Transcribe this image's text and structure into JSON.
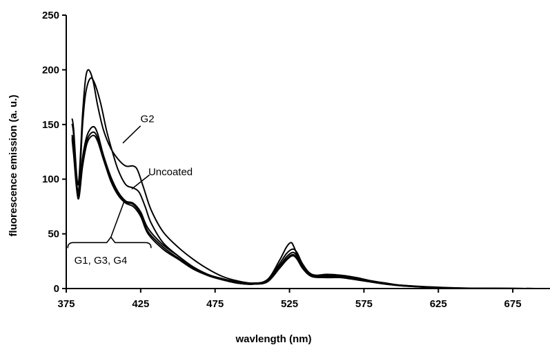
{
  "chart_data": {
    "type": "line",
    "title": "",
    "xlabel": "wavlength (nm)",
    "ylabel": "fluorescence emission (a. u.)",
    "xlim": [
      375,
      700
    ],
    "ylim": [
      0,
      250
    ],
    "xticks": [
      375,
      425,
      475,
      525,
      575,
      625,
      675
    ],
    "yticks": [
      0,
      50,
      100,
      150,
      200,
      250
    ],
    "grid": false,
    "legend": "none",
    "series": [
      {
        "x": [
          379,
          380,
          383,
          386,
          388,
          390,
          393,
          396,
          400,
          405,
          410,
          415,
          420,
          423,
          427,
          432,
          440,
          450,
          460,
          470,
          480,
          490,
          500,
          510,
          518,
          523,
          526,
          528,
          532,
          537,
          542,
          550,
          560,
          570,
          580,
          590,
          600,
          620,
          640,
          660,
          690
        ],
        "values": [
          155,
          145,
          95,
          160,
          192,
          200,
          190,
          168,
          145,
          128,
          118,
          112,
          112,
          108,
          92,
          72,
          52,
          38,
          27,
          18,
          11,
          7,
          5,
          8,
          25,
          38,
          42,
          38,
          25,
          15,
          12,
          13,
          12,
          9,
          6,
          4,
          3,
          1.5,
          0.5,
          0.2,
          0
        ]
      },
      {
        "x": [
          379,
          380,
          383,
          386,
          388,
          391,
          394,
          398,
          402,
          406,
          410,
          415,
          420,
          424,
          428,
          432,
          440,
          450,
          460,
          470,
          480,
          490,
          500,
          510,
          518,
          523,
          527,
          530,
          534,
          540,
          550,
          560,
          570,
          580,
          590,
          600,
          620,
          640,
          660,
          690
        ],
        "values": [
          150,
          140,
          88,
          150,
          178,
          192,
          188,
          170,
          145,
          125,
          108,
          95,
          92,
          88,
          75,
          60,
          42,
          30,
          20,
          13,
          8,
          5,
          4,
          7,
          22,
          32,
          36,
          33,
          22,
          13,
          12,
          12,
          10,
          7,
          5,
          3,
          1.2,
          0.4,
          0.2,
          0
        ]
      },
      {
        "x": [
          379,
          380,
          383,
          386,
          389,
          393,
          396,
          400,
          405,
          410,
          415,
          420,
          425,
          430,
          440,
          450,
          460,
          470,
          480,
          490,
          500,
          510,
          518,
          523,
          527,
          530,
          534,
          540,
          550,
          560,
          570,
          580,
          590,
          600,
          620,
          640,
          660,
          690
        ],
        "values": [
          140,
          128,
          85,
          120,
          140,
          148,
          142,
          122,
          102,
          88,
          80,
          78,
          70,
          55,
          40,
          30,
          20,
          13,
          9,
          6,
          4,
          7,
          20,
          29,
          33,
          30,
          20,
          12,
          11,
          11,
          9,
          7,
          4,
          3,
          1,
          0.4,
          0.2,
          0
        ]
      },
      {
        "x": [
          379,
          380,
          383,
          386,
          389,
          393,
          396,
          400,
          405,
          410,
          415,
          420,
          425,
          430,
          440,
          450,
          460,
          470,
          480,
          490,
          500,
          510,
          518,
          523,
          527,
          530,
          534,
          540,
          550,
          560,
          570,
          580,
          590,
          600,
          620,
          640,
          660,
          690
        ],
        "values": [
          138,
          125,
          83,
          115,
          136,
          143,
          138,
          120,
          100,
          86,
          79,
          77,
          68,
          52,
          38,
          28,
          19,
          12,
          8,
          5,
          4,
          7,
          19,
          27,
          31,
          28,
          19,
          11,
          11,
          10,
          8,
          6,
          4,
          2.5,
          1,
          0.3,
          0.1,
          0
        ]
      },
      {
        "x": [
          379,
          380,
          383,
          386,
          389,
          393,
          396,
          400,
          405,
          410,
          415,
          420,
          425,
          430,
          440,
          450,
          460,
          470,
          480,
          490,
          500,
          510,
          518,
          523,
          527,
          530,
          534,
          540,
          550,
          560,
          570,
          580,
          590,
          600,
          620,
          640,
          660,
          690
        ],
        "values": [
          136,
          122,
          82,
          112,
          133,
          140,
          135,
          118,
          98,
          85,
          78,
          75,
          66,
          50,
          36,
          27,
          18,
          12,
          8,
          5,
          4,
          6,
          18,
          26,
          30,
          27,
          18,
          11,
          10,
          10,
          8,
          6,
          4,
          2.5,
          1,
          0.3,
          0.1,
          0
        ]
      }
    ],
    "annotations": [
      {
        "text": "G2",
        "x": 423,
        "y": 152
      },
      {
        "text": "Uncoated",
        "x": 432,
        "y": 106
      },
      {
        "text": "G1, G3, G4",
        "x": 379,
        "y": 24
      }
    ]
  }
}
